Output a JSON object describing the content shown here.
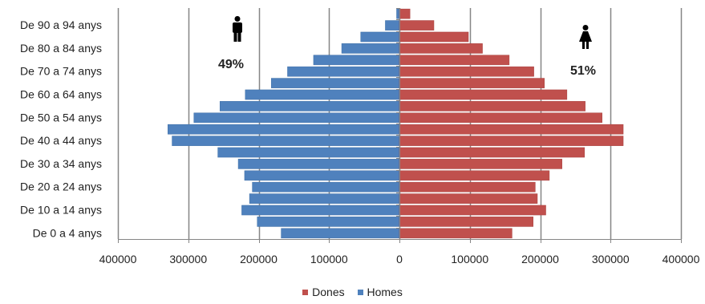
{
  "chart_data": {
    "type": "bar",
    "orientation": "horizontal",
    "layout": "population-pyramid",
    "categories": [
      "De 0 a 4 anys",
      "",
      "De 10 a 14 anys",
      "",
      "De 20 a 24 anys",
      "",
      "De 30 a 34 anys",
      "",
      "De 40 a 44 anys",
      "",
      "De 50 a 54 anys",
      "",
      "De 60 a 64 anys",
      "",
      "De 70 a 74 anys",
      "",
      "De 80 a 84 anys",
      "",
      "De 90 a 94 anys",
      ""
    ],
    "series": [
      {
        "name": "Dones",
        "color": "#C0504D",
        "side": "right",
        "values": [
          160000,
          190000,
          208000,
          196000,
          193000,
          213000,
          231000,
          263000,
          318000,
          318000,
          288000,
          264000,
          238000,
          206000,
          191000,
          156000,
          118000,
          98000,
          49000,
          15000
        ]
      },
      {
        "name": "Homes",
        "color": "#4F81BD",
        "side": "left",
        "values": [
          168000,
          202000,
          224000,
          213000,
          209000,
          220000,
          229000,
          258000,
          323000,
          329000,
          292000,
          255000,
          219000,
          182000,
          159000,
          122000,
          82000,
          55000,
          20000,
          4000
        ]
      }
    ],
    "x_ticks": [
      "400000",
      "300000",
      "200000",
      "100000",
      "0",
      "100000",
      "200000",
      "300000",
      "400000"
    ],
    "xlim": [
      -400000,
      400000
    ],
    "grid": "vertical",
    "legend": "bottom-center",
    "annotations": {
      "men_pct": "49%",
      "women_pct": "51%",
      "men_icon": "male-icon",
      "women_icon": "female-icon"
    }
  }
}
